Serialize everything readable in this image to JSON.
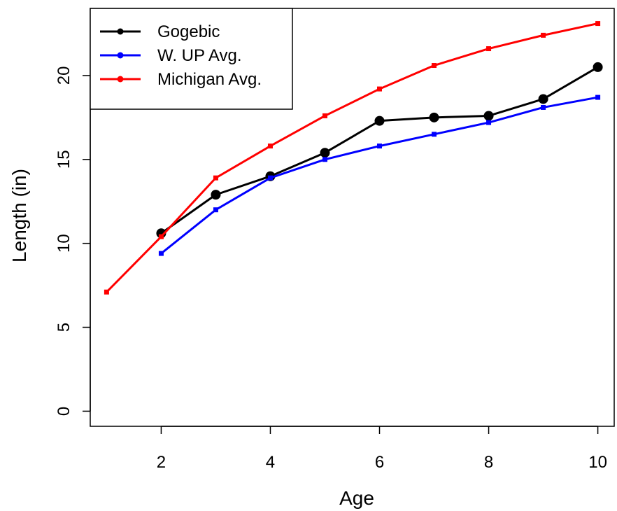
{
  "chart_data": {
    "type": "line",
    "title": "",
    "xlabel": "Age",
    "ylabel": "Length (in)",
    "xlim": [
      0.7,
      10.3
    ],
    "ylim": [
      -0.9,
      24
    ],
    "xticks": [
      2,
      4,
      6,
      8,
      10
    ],
    "yticks": [
      0,
      5,
      10,
      15,
      20
    ],
    "grid": false,
    "legend_position": "top-left",
    "series": [
      {
        "name": "Gogebic",
        "color": "#000000",
        "marker": "large-circle",
        "x": [
          2,
          3,
          4,
          5,
          6,
          7,
          8,
          9,
          10
        ],
        "y": [
          10.6,
          12.9,
          14.0,
          15.4,
          17.3,
          17.5,
          17.6,
          18.6,
          20.5
        ]
      },
      {
        "name": "W. UP Avg.",
        "color": "#0000FF",
        "marker": "small-square",
        "x": [
          2,
          3,
          4,
          5,
          6,
          7,
          8,
          9,
          10
        ],
        "y": [
          9.4,
          12.0,
          13.9,
          15.0,
          15.8,
          16.5,
          17.2,
          18.1,
          18.7
        ]
      },
      {
        "name": "Michigan Avg.",
        "color": "#FF0000",
        "marker": "small-square",
        "x": [
          1,
          2,
          3,
          4,
          5,
          6,
          7,
          8,
          9,
          10
        ],
        "y": [
          7.1,
          10.4,
          13.9,
          15.8,
          17.6,
          19.2,
          20.6,
          21.6,
          22.4,
          23.1
        ]
      }
    ]
  }
}
